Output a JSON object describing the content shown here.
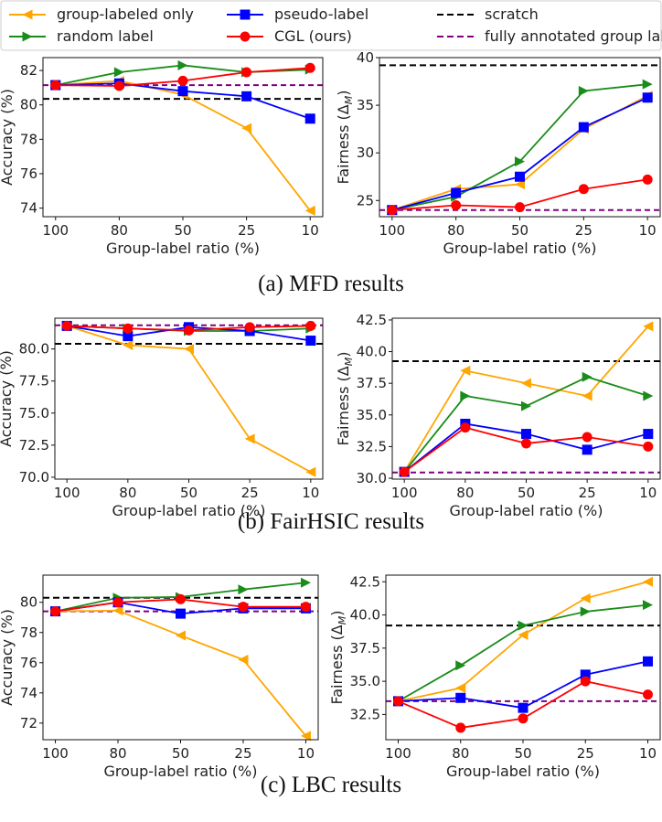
{
  "legend": {
    "placement": "top",
    "items": [
      {
        "label": "group-labeled only",
        "color": "#FFA500",
        "marker": "triangle-left",
        "style": "solid"
      },
      {
        "label": "random label",
        "color": "#1a8c1a",
        "marker": "triangle-right",
        "style": "solid"
      },
      {
        "label": "pseudo-label",
        "color": "#0000FF",
        "marker": "square",
        "style": "solid"
      },
      {
        "label": "CGL (ours)",
        "color": "#FF0000",
        "marker": "circle",
        "style": "solid"
      },
      {
        "label": "scratch",
        "color": "#000000",
        "marker": "none",
        "style": "dashed"
      },
      {
        "label": "fully annotated group labels",
        "color": "#800080",
        "marker": "none",
        "style": "dashed"
      }
    ]
  },
  "captions": [
    "(a) MFD results",
    "(b) FairHSIC results",
    "(c) LBC results"
  ],
  "chart_data": [
    {
      "type": "line",
      "panel": "a-left",
      "xlabel": "Group-label ratio (%)",
      "ylabel": "Accuracy (%)",
      "categories": [
        "100",
        "80",
        "50",
        "25",
        "10"
      ],
      "ylim": [
        73.5,
        82.75
      ],
      "yticks": [
        "74",
        "76",
        "78",
        "80",
        "82"
      ],
      "grid": false,
      "series": [
        {
          "name": "group-labeled only",
          "values": [
            81.15,
            81.4,
            80.6,
            78.65,
            73.85
          ]
        },
        {
          "name": "random label",
          "values": [
            81.15,
            81.9,
            82.3,
            81.9,
            82.05
          ]
        },
        {
          "name": "pseudo-label",
          "values": [
            81.15,
            81.25,
            80.8,
            80.5,
            79.2
          ]
        },
        {
          "name": "CGL (ours)",
          "values": [
            81.15,
            81.1,
            81.4,
            81.9,
            82.15
          ]
        }
      ],
      "hlines": {
        "scratch": 80.35,
        "fully annotated group labels": 81.15
      }
    },
    {
      "type": "line",
      "panel": "a-right",
      "xlabel": "Group-label ratio (%)",
      "ylabel": "Fairness (Δ_M)",
      "categories": [
        "100",
        "80",
        "50",
        "25",
        "10"
      ],
      "ylim": [
        23.3,
        40
      ],
      "yticks": [
        "25",
        "30",
        "35",
        "40"
      ],
      "grid": false,
      "series": [
        {
          "name": "group-labeled only",
          "values": [
            24,
            26.2,
            26.7,
            32.5,
            36
          ]
        },
        {
          "name": "random label",
          "values": [
            24,
            25.4,
            29.1,
            36.5,
            37.2
          ]
        },
        {
          "name": "pseudo-label",
          "values": [
            24,
            25.8,
            27.5,
            32.7,
            35.8
          ]
        },
        {
          "name": "CGL (ours)",
          "values": [
            24,
            24.5,
            24.3,
            26.2,
            27.2
          ]
        }
      ],
      "hlines": {
        "scratch": 39.2,
        "fully annotated group labels": 24
      }
    },
    {
      "type": "line",
      "panel": "b-left",
      "xlabel": "Group-label ratio (%)",
      "ylabel": "Accuracy (%)",
      "categories": [
        "100",
        "80",
        "50",
        "25",
        "10"
      ],
      "ylim": [
        69.85,
        82.4
      ],
      "yticks": [
        "70.0",
        "72.5",
        "75.0",
        "77.5",
        "80.0"
      ],
      "grid": false,
      "series": [
        {
          "name": "group-labeled only",
          "values": [
            81.8,
            80.3,
            80.0,
            73.0,
            70.4
          ]
        },
        {
          "name": "random label",
          "values": [
            81.8,
            81.6,
            81.4,
            81.4,
            81.6
          ]
        },
        {
          "name": "pseudo-label",
          "values": [
            81.8,
            81.0,
            81.7,
            81.4,
            80.65
          ]
        },
        {
          "name": "CGL (ours)",
          "values": [
            81.8,
            81.6,
            81.45,
            81.7,
            81.8
          ]
        }
      ],
      "hlines": {
        "scratch": 80.4,
        "fully annotated group labels": 81.85
      }
    },
    {
      "type": "line",
      "panel": "b-right",
      "xlabel": "Group-label ratio (%)",
      "ylabel": "Fairness (Δ_M)",
      "categories": [
        "100",
        "80",
        "50",
        "25",
        "10"
      ],
      "ylim": [
        29.93,
        42.64
      ],
      "yticks": [
        "30.0",
        "32.5",
        "35.0",
        "37.5",
        "40.0",
        "42.5"
      ],
      "grid": false,
      "series": [
        {
          "name": "group-labeled only",
          "values": [
            30.5,
            38.5,
            37.5,
            36.5,
            42.0
          ]
        },
        {
          "name": "random label",
          "values": [
            30.5,
            36.5,
            35.7,
            38.0,
            36.5
          ]
        },
        {
          "name": "pseudo-label",
          "values": [
            30.5,
            34.3,
            33.5,
            32.25,
            33.5
          ]
        },
        {
          "name": "CGL (ours)",
          "values": [
            30.5,
            34.0,
            32.75,
            33.25,
            32.5
          ]
        }
      ],
      "hlines": {
        "scratch": 39.25,
        "fully annotated group labels": 30.45
      }
    },
    {
      "type": "line",
      "panel": "c-left",
      "xlabel": "Group-label ratio (%)",
      "ylabel": "Accuracy (%)",
      "categories": [
        "100",
        "80",
        "50",
        "25",
        "10"
      ],
      "ylim": [
        70.9,
        81.8
      ],
      "yticks": [
        "72",
        "74",
        "76",
        "78",
        "80"
      ],
      "grid": false,
      "series": [
        {
          "name": "group-labeled only",
          "values": [
            79.4,
            79.45,
            77.8,
            76.2,
            71.15
          ]
        },
        {
          "name": "random label",
          "values": [
            79.4,
            80.3,
            80.35,
            80.85,
            81.3
          ]
        },
        {
          "name": "pseudo-label",
          "values": [
            79.4,
            80.0,
            79.25,
            79.6,
            79.6
          ]
        },
        {
          "name": "CGL (ours)",
          "values": [
            79.4,
            80.0,
            80.2,
            79.7,
            79.7
          ]
        }
      ],
      "hlines": {
        "scratch": 80.3,
        "fully annotated group labels": 79.4
      }
    },
    {
      "type": "line",
      "panel": "c-right",
      "xlabel": "Group-label ratio (%)",
      "ylabel": "Fairness (Δ_M)",
      "categories": [
        "100",
        "80",
        "50",
        "25",
        "10"
      ],
      "ylim": [
        30.6,
        43.0
      ],
      "yticks": [
        "32.5",
        "35.0",
        "37.5",
        "40.0",
        "42.5"
      ],
      "grid": false,
      "series": [
        {
          "name": "group-labeled only",
          "values": [
            33.5,
            34.5,
            38.5,
            41.25,
            42.5
          ]
        },
        {
          "name": "random label",
          "values": [
            33.5,
            36.2,
            39.2,
            40.25,
            40.75
          ]
        },
        {
          "name": "pseudo-label",
          "values": [
            33.5,
            33.75,
            33.0,
            35.5,
            36.5
          ]
        },
        {
          "name": "CGL (ours)",
          "values": [
            33.5,
            31.5,
            32.2,
            35.0,
            34.0
          ]
        }
      ],
      "hlines": {
        "scratch": 39.2,
        "fully annotated group labels": 33.5
      }
    }
  ]
}
